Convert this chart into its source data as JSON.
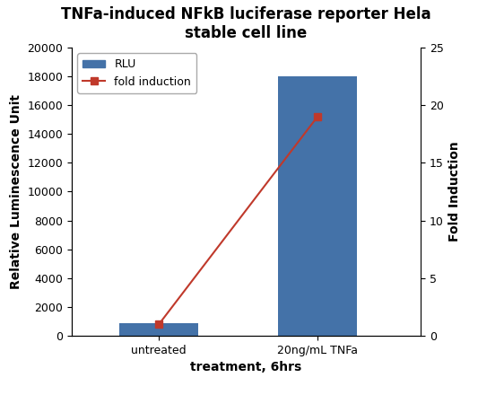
{
  "title_line1": "TNFa-induced NFkB luciferase reporter Hela",
  "title_line2": "stable cell line",
  "categories": [
    "untreated",
    "20ng/mL TNFa"
  ],
  "rlu_values": [
    900,
    18000
  ],
  "fold_induction": [
    1,
    19
  ],
  "bar_color": "#4472a8",
  "line_color": "#c0392b",
  "left_ylabel": "Relative Luminescence Unit",
  "right_ylabel": "Fold Induction",
  "xlabel": "treatment, 6hrs",
  "left_ylim": [
    0,
    20000
  ],
  "right_ylim": [
    0,
    25
  ],
  "left_yticks": [
    0,
    2000,
    4000,
    6000,
    8000,
    10000,
    12000,
    14000,
    16000,
    18000,
    20000
  ],
  "right_yticks": [
    0,
    5,
    10,
    15,
    20,
    25
  ],
  "legend_rlu": "RLU",
  "legend_fold": "fold induction",
  "title_fontsize": 12,
  "label_fontsize": 10,
  "tick_fontsize": 9,
  "bar_width": 0.5,
  "background_color": "#ffffff",
  "xlim": [
    -0.55,
    1.65
  ]
}
